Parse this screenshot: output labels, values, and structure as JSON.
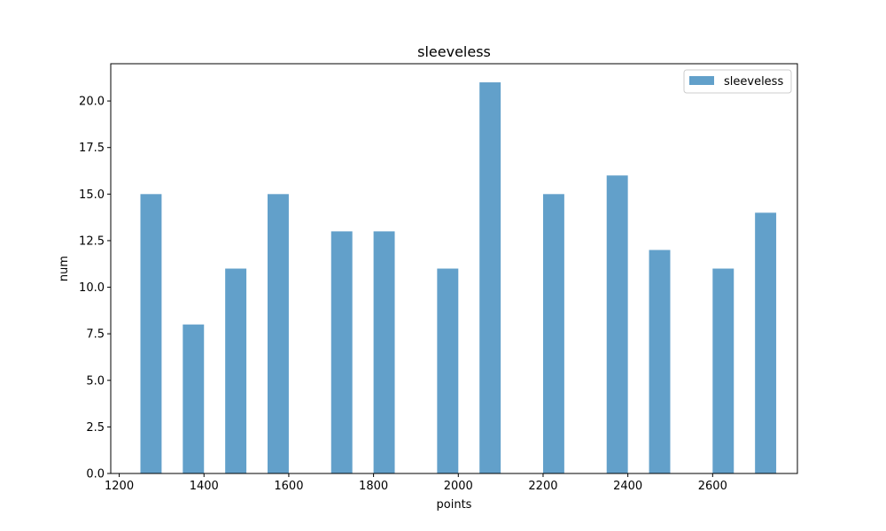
{
  "chart_data": {
    "type": "bar",
    "title": "sleeveless",
    "xlabel": "points",
    "ylabel": "num",
    "xlim": [
      1180,
      2800
    ],
    "ylim": [
      0,
      22
    ],
    "bar_width": 50,
    "x_ticks": [
      1200,
      1400,
      1600,
      1800,
      2000,
      2200,
      2400,
      2600
    ],
    "x_tick_labels": [
      "1200",
      "1400",
      "1600",
      "1800",
      "2000",
      "2200",
      "2400",
      "2600"
    ],
    "y_ticks": [
      0,
      2.5,
      5,
      7.5,
      10,
      12.5,
      15,
      17.5,
      20
    ],
    "y_tick_labels": [
      "0.0",
      "2.5",
      "5.0",
      "7.5",
      "10.0",
      "12.5",
      "15.0",
      "17.5",
      "20.0"
    ],
    "grid": false,
    "legend_position": "top-right",
    "series": [
      {
        "name": "sleeveless",
        "color": "#1f77b4",
        "opacity": 0.7,
        "x": [
          1275,
          1375,
          1475,
          1575,
          1725,
          1825,
          1975,
          2075,
          2225,
          2375,
          2475,
          2625,
          2725
        ],
        "values": [
          15,
          8,
          11,
          15,
          13,
          13,
          11,
          21,
          15,
          16,
          12,
          11,
          14
        ]
      }
    ]
  }
}
